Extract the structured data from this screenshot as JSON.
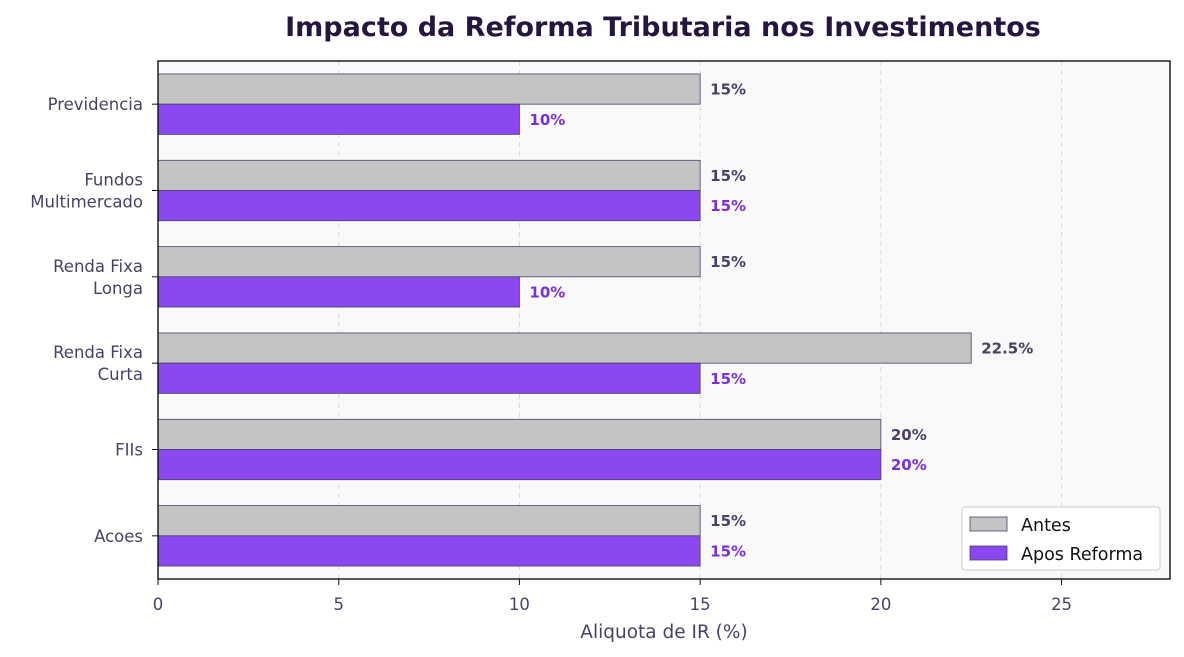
{
  "chart_data": {
    "type": "bar",
    "orientation": "horizontal",
    "title": "Impacto da Reforma Tributaria nos Investimentos",
    "xlabel": "Aliquota de IR (%)",
    "ylabel": "",
    "xlim": [
      0,
      28
    ],
    "xticks": [
      0,
      5,
      10,
      15,
      20,
      25
    ],
    "grid": "x, dashed",
    "legend_position": "bottom-right",
    "categories": [
      [
        "Acoes"
      ],
      [
        "FIIs"
      ],
      [
        "Renda Fixa",
        "Curta"
      ],
      [
        "Renda Fixa",
        "Longa"
      ],
      [
        "Fundos",
        "Multimercado"
      ],
      [
        "Previdencia"
      ]
    ],
    "series": [
      {
        "name": "Antes",
        "color": "#c4c4c4",
        "values": [
          15,
          20,
          22.5,
          15,
          15,
          15
        ],
        "labels": [
          "15%",
          "20%",
          "22.5%",
          "15%",
          "15%",
          "15%"
        ]
      },
      {
        "name": "Apos Reforma",
        "color": "#8b47f0",
        "values": [
          15,
          20,
          15,
          10,
          15,
          10
        ],
        "labels": [
          "15%",
          "20%",
          "15%",
          "10%",
          "15%",
          "10%"
        ]
      }
    ],
    "colors": {
      "plot_background": "#f9f9f9",
      "bar_edge": "#4a3f66",
      "label_before": "#4a3f66",
      "label_after": "#7b2fd9"
    }
  }
}
